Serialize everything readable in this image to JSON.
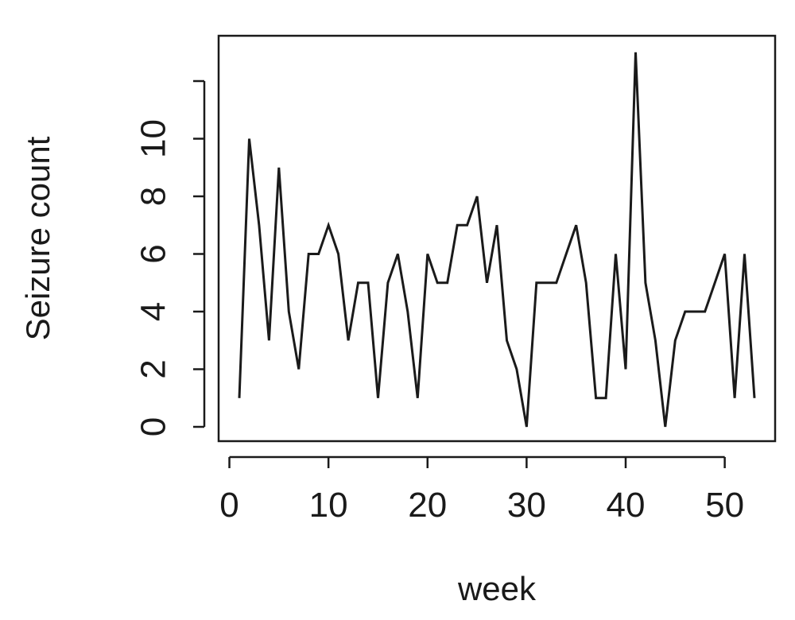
{
  "chart_data": {
    "type": "line",
    "title": "",
    "xlabel": "week",
    "ylabel": "Seizure count",
    "xlim": [
      1,
      53
    ],
    "ylim": [
      0,
      12
    ],
    "grid": false,
    "legend": "none",
    "x_ticks": [
      0,
      10,
      20,
      30,
      40,
      50
    ],
    "y_ticks": [
      0,
      2,
      4,
      6,
      8,
      10,
      12
    ],
    "y_tick_labels": [
      "0",
      "2",
      "4",
      "6",
      "8",
      "10",
      ""
    ],
    "series": [
      {
        "color": "#1a1a1a",
        "x": [
          1,
          2,
          3,
          4,
          5,
          6,
          7,
          8,
          9,
          10,
          11,
          12,
          13,
          14,
          15,
          16,
          17,
          18,
          19,
          20,
          21,
          22,
          23,
          24,
          25,
          26,
          27,
          28,
          29,
          30,
          31,
          32,
          33,
          34,
          35,
          36,
          37,
          38,
          39,
          40,
          41,
          42,
          43,
          44,
          45,
          46,
          47,
          48,
          49,
          50,
          51,
          52,
          53
        ],
        "values": [
          1,
          10,
          7,
          3,
          9,
          4,
          2,
          6,
          6,
          7,
          6,
          3,
          5,
          5,
          1,
          5,
          6,
          4,
          1,
          6,
          5,
          5,
          7,
          7,
          8,
          5,
          7,
          3,
          2,
          0,
          5,
          5,
          5,
          6,
          7,
          5,
          1,
          1,
          6,
          2,
          13,
          5,
          3,
          0,
          3,
          4,
          4,
          4,
          5,
          6,
          1,
          6,
          1
        ]
      }
    ]
  }
}
